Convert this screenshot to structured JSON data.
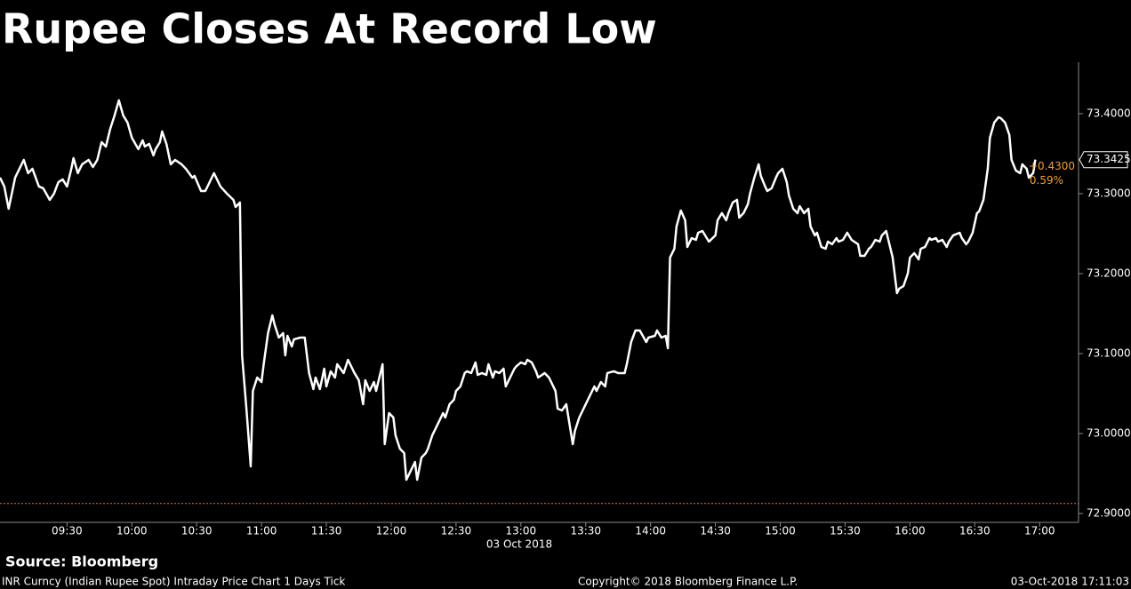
{
  "chart_data": {
    "type": "line",
    "title": "Rupee Closes At Record Low",
    "x_label": "03 Oct 2018",
    "color": "#ffffff",
    "x": [
      "08:59",
      "09:01",
      "09:03",
      "09:06",
      "09:10",
      "09:12",
      "09:14",
      "09:17",
      "09:19",
      "09:22",
      "09:24",
      "09:26",
      "09:28",
      "09:30",
      "09:32",
      "09:33",
      "09:35",
      "09:37",
      "09:40",
      "09:42",
      "09:44",
      "09:46",
      "09:48",
      "09:50",
      "09:52",
      "09:54",
      "09:56",
      "09:58",
      "10:00",
      "10:03",
      "10:05",
      "10:06",
      "10:08",
      "10:10",
      "10:11",
      "10:13",
      "10:14",
      "10:16",
      "10:18",
      "10:20",
      "10:23",
      "10:25",
      "10:28",
      "10:29",
      "10:32",
      "10:34",
      "10:36",
      "10:38",
      "10:41",
      "10:44",
      "10:47",
      "10:48",
      "10:50",
      "10:51",
      "10:53",
      "10:55",
      "10:56",
      "10:58",
      "11:00",
      "11:01",
      "11:03",
      "11:05",
      "11:06",
      "11:08",
      "11:10",
      "11:11",
      "11:12",
      "11:14",
      "11:15",
      "11:18",
      "11:20",
      "11:22",
      "11:24",
      "11:25",
      "11:27",
      "11:29",
      "11:30",
      "11:32",
      "11:34",
      "11:35",
      "11:38",
      "11:40",
      "11:43",
      "11:45",
      "11:47",
      "11:48",
      "11:50",
      "11:52",
      "11:53",
      "11:56",
      "11:57",
      "11:59",
      "12:01",
      "12:02",
      "12:04",
      "12:06",
      "12:07",
      "12:09",
      "12:11",
      "12:12",
      "12:14",
      "12:16",
      "12:17",
      "12:19",
      "12:20",
      "12:22",
      "12:24",
      "12:25",
      "12:27",
      "12:29",
      "12:30",
      "12:32",
      "12:34",
      "12:35",
      "12:37",
      "12:39",
      "12:40",
      "12:42",
      "12:44",
      "12:45",
      "12:47",
      "12:48",
      "12:50",
      "12:52",
      "12:53",
      "12:55",
      "12:57",
      "12:58",
      "13:00",
      "13:02",
      "13:03",
      "13:05",
      "13:07",
      "13:08",
      "13:11",
      "13:13",
      "13:16",
      "13:17",
      "13:19",
      "13:21",
      "13:22",
      "13:24",
      "13:25",
      "13:27",
      "13:29",
      "13:30",
      "13:32",
      "13:34",
      "13:35",
      "13:37",
      "13:39",
      "13:40",
      "13:43",
      "13:45",
      "13:48",
      "13:49",
      "13:51",
      "13:53",
      "13:55",
      "13:58",
      "13:59",
      "14:02",
      "14:03",
      "14:05",
      "14:07",
      "14:08",
      "14:09",
      "14:11",
      "14:12",
      "14:14",
      "14:16",
      "14:17",
      "14:19",
      "14:21",
      "14:22",
      "14:24",
      "14:26",
      "14:27",
      "14:30",
      "14:31",
      "14:33",
      "14:35",
      "14:36",
      "14:38",
      "14:40",
      "14:41",
      "14:43",
      "14:45",
      "14:46",
      "14:48",
      "14:50",
      "14:51",
      "14:53",
      "14:54",
      "14:56",
      "14:58",
      "14:59",
      "15:01",
      "15:03",
      "15:04",
      "15:06",
      "15:08",
      "15:09",
      "15:11",
      "15:13",
      "15:14",
      "15:16",
      "15:17",
      "15:19",
      "15:21",
      "15:22",
      "15:24",
      "15:26",
      "15:27",
      "15:29",
      "15:31",
      "15:33",
      "15:36",
      "15:37",
      "15:39",
      "15:41",
      "15:42",
      "15:44",
      "15:46",
      "15:47",
      "15:49",
      "15:50",
      "15:52",
      "15:54",
      "15:55",
      "15:57",
      "15:59",
      "16:00",
      "16:02",
      "16:04",
      "16:05",
      "16:07",
      "16:09",
      "16:10",
      "16:12",
      "16:13",
      "16:15",
      "16:17",
      "16:18",
      "16:20",
      "16:23",
      "16:24",
      "16:26",
      "16:27",
      "16:29",
      "16:31",
      "16:32",
      "16:34",
      "16:36",
      "16:37",
      "16:39",
      "16:41",
      "16:42",
      "16:44",
      "16:46",
      "16:47",
      "16:49",
      "16:51",
      "16:52",
      "16:54",
      "16:55",
      "16:57",
      "16:58"
    ],
    "values": [
      73.32,
      73.3089,
      73.2811,
      73.32,
      73.3422,
      73.3256,
      73.3311,
      73.3089,
      73.3067,
      73.2922,
      73.3,
      73.3144,
      73.3178,
      73.3089,
      73.3311,
      73.3444,
      73.3256,
      73.3367,
      73.3422,
      73.3333,
      73.3422,
      73.3644,
      73.3589,
      73.3811,
      73.3978,
      73.4167,
      73.3978,
      73.3889,
      73.37,
      73.3556,
      73.3667,
      73.3589,
      73.3622,
      73.3478,
      73.3556,
      73.3644,
      73.3778,
      73.3622,
      73.3367,
      73.3422,
      73.3367,
      73.3311,
      73.32,
      73.3222,
      73.3033,
      73.3033,
      73.3144,
      73.3256,
      73.3089,
      73.3,
      73.2922,
      73.2833,
      73.2889,
      73.0978,
      73.0311,
      72.9589,
      73.0533,
      73.07,
      73.0644,
      73.0867,
      73.1256,
      73.1478,
      73.1367,
      73.12,
      73.1256,
      73.0978,
      73.1222,
      73.1089,
      73.1178,
      73.12,
      73.12,
      73.0756,
      73.0556,
      73.07,
      73.0556,
      73.0811,
      73.0589,
      73.0778,
      73.07,
      73.0867,
      73.0756,
      73.0922,
      73.0756,
      73.0667,
      73.0367,
      73.0667,
      73.0533,
      73.0644,
      73.0533,
      73.0867,
      72.9867,
      73.0256,
      73.02,
      72.9978,
      72.9811,
      72.9756,
      72.9422,
      72.9533,
      72.9644,
      72.9422,
      72.97,
      72.9756,
      72.9811,
      72.9978,
      73.0033,
      73.0144,
      73.0256,
      73.02,
      73.0367,
      73.0422,
      73.0533,
      73.0589,
      73.0756,
      73.0778,
      73.0756,
      73.0889,
      73.0733,
      73.0756,
      73.0733,
      73.0867,
      73.07,
      73.0778,
      73.0756,
      73.0811,
      73.0589,
      73.07,
      73.0811,
      73.0844,
      73.0889,
      73.0867,
      73.0922,
      73.0889,
      73.0778,
      73.07,
      73.0756,
      73.07,
      73.0533,
      73.0311,
      73.0289,
      73.0367,
      73.02,
      72.9867,
      73.0033,
      73.02,
      73.0311,
      73.0367,
      73.0478,
      73.0589,
      73.0533,
      73.0644,
      73.0589,
      73.0756,
      73.0778,
      73.0756,
      73.0756,
      73.0867,
      73.1144,
      73.1289,
      73.1289,
      73.1144,
      73.12,
      73.1222,
      73.1289,
      73.12,
      73.1222,
      73.1067,
      73.22,
      73.2311,
      73.2589,
      73.2789,
      73.2667,
      73.2333,
      73.2444,
      73.2422,
      73.2511,
      73.2533,
      73.2444,
      73.24,
      73.2478,
      73.2667,
      73.2756,
      73.2667,
      73.2756,
      73.2889,
      73.2922,
      73.27,
      73.2756,
      73.2867,
      73.3,
      73.32,
      73.3367,
      73.3222,
      73.3089,
      73.3033,
      73.3067,
      73.32,
      73.3256,
      73.3311,
      73.3144,
      73.2978,
      73.2811,
      73.2756,
      73.2844,
      73.2756,
      73.2811,
      73.2589,
      73.2478,
      73.2511,
      73.2333,
      73.2311,
      73.24,
      73.2367,
      73.2444,
      73.24,
      73.2422,
      73.2511,
      73.2422,
      73.2367,
      73.2222,
      73.2222,
      73.2311,
      73.2333,
      73.2422,
      73.24,
      73.2478,
      73.2533,
      73.2422,
      73.22,
      73.1756,
      73.1811,
      73.1844,
      73.2,
      73.22,
      73.2256,
      73.2178,
      73.2311,
      73.2333,
      73.2444,
      73.2422,
      73.2444,
      73.24,
      73.2422,
      73.2333,
      73.24,
      73.2478,
      73.2511,
      73.2444,
      73.2367,
      73.24,
      73.2511,
      73.2756,
      73.2778,
      73.2922,
      73.3311,
      73.37,
      73.3889,
      73.3956,
      73.3944,
      73.3889,
      73.3733,
      73.3422,
      73.3289,
      73.3256,
      73.3367,
      73.3311,
      73.32,
      73.3256,
      73.3425
    ],
    "xlim": [
      "08:59",
      "17:18"
    ],
    "xticks": [
      "09:30",
      "10:00",
      "10:30",
      "11:00",
      "11:30",
      "12:00",
      "12:30",
      "13:00",
      "13:30",
      "14:00",
      "14:30",
      "15:00",
      "15:30",
      "16:00",
      "16:30",
      "17:00"
    ],
    "ylim": [
      72.8889,
      73.4644
    ],
    "yticks": [
      {
        "value": 72.9,
        "label": "72.9000"
      },
      {
        "value": 73.0,
        "label": "73.0000"
      },
      {
        "value": 73.1,
        "label": "73.1000"
      },
      {
        "value": 73.2,
        "label": "73.2000"
      },
      {
        "value": 73.3,
        "label": "73.3000"
      },
      {
        "value": 73.4,
        "label": "73.4000"
      }
    ],
    "reference_line": 72.9125,
    "reference_color": "#e8734a",
    "change": {
      "value": 0.43,
      "label": "+0.4300"
    },
    "change_percent": {
      "value": 0.59,
      "label": "0.59%"
    },
    "change_color": "#f39c3c",
    "source": "Source: Bloomberg",
    "footnote": "INR Curncy (Indian Rupee Spot) Intraday Price Chart 1 Days  Tick",
    "copyright": "Copyright© 2018 Bloomberg Finance L.P.",
    "timestamp": "03-Oct-2018 17:11:03"
  }
}
